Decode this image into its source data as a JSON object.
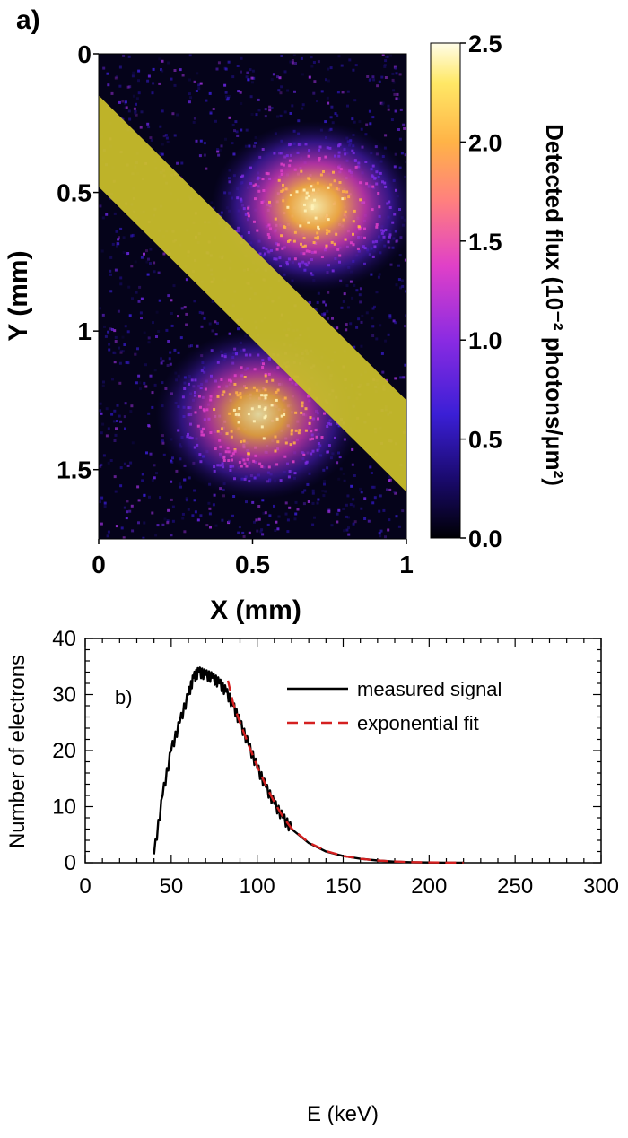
{
  "chart_data": [
    {
      "panel_label": "a)",
      "type": "heatmap",
      "xlabel": "X (mm)",
      "ylabel": "Y (mm)",
      "xlim": [
        0,
        1
      ],
      "ylim": [
        1.75,
        0
      ],
      "x_ticks": [
        0,
        0.5,
        1
      ],
      "x_tick_labels": [
        "0",
        "0.5",
        "1"
      ],
      "y_ticks": [
        0,
        0.5,
        1,
        1.5
      ],
      "y_tick_labels": [
        "0",
        "0.5",
        "1",
        "1.5"
      ],
      "colorbar": {
        "label": "Detected flux (10⁻² photons/μm²)",
        "range": [
          0,
          2.5
        ],
        "ticks": [
          0,
          0.5,
          1.0,
          1.5,
          2.0,
          2.5
        ],
        "tick_labels": [
          "0.0",
          "0.5",
          "1.0",
          "1.5",
          "2.0",
          "2.5"
        ],
        "colormap": [
          "#000004",
          "#1a0a6e",
          "#3b1fd6",
          "#8a2be2",
          "#e040c8",
          "#ff7f7f",
          "#ffb347",
          "#ffe866",
          "#fffde8"
        ]
      },
      "hotspots": [
        {
          "x": 0.7,
          "y": 0.55,
          "peak": 2.4
        },
        {
          "x": 0.52,
          "y": 1.3,
          "peak": 2.2
        }
      ],
      "overlay_band": {
        "color": "#c8bd2a",
        "upper_edge": [
          [
            0,
            0.15
          ],
          [
            1,
            1.25
          ]
        ],
        "lower_edge": [
          [
            0,
            0.48
          ],
          [
            1,
            1.58
          ]
        ]
      }
    },
    {
      "panel_label": "b)",
      "type": "line",
      "xlabel": "E (keV)",
      "ylabel": "Number of electrons",
      "xlim": [
        0,
        300
      ],
      "ylim": [
        0,
        40
      ],
      "x_ticks": [
        0,
        50,
        100,
        150,
        200,
        250,
        300
      ],
      "y_ticks": [
        0,
        10,
        20,
        30,
        40
      ],
      "legend_position": "top-right",
      "series": [
        {
          "name": "measured signal",
          "color": "#000000",
          "style": "solid",
          "x": [
            40,
            45,
            50,
            55,
            60,
            63,
            66,
            70,
            74,
            78,
            82,
            86,
            90,
            95,
            100,
            105,
            110,
            115,
            120,
            130,
            140,
            150,
            160,
            170,
            180,
            190,
            200,
            210,
            220
          ],
          "y": [
            1.5,
            12,
            20,
            25,
            30,
            33,
            34,
            33.5,
            33,
            32,
            30.5,
            28,
            25,
            21,
            17,
            13.5,
            10.5,
            8,
            6,
            3.5,
            2,
            1.2,
            0.7,
            0.4,
            0.2,
            0.1,
            0.05,
            0.02,
            0
          ]
        },
        {
          "name": "exponential fit",
          "color": "#d42020",
          "style": "dashed",
          "x": [
            83,
            86,
            90,
            95,
            100,
            105,
            110,
            115,
            120,
            130,
            140,
            150,
            160,
            170,
            180,
            190,
            200,
            210,
            220
          ],
          "y": [
            32.5,
            28.5,
            25,
            21,
            17.2,
            13.8,
            10.8,
            8.2,
            6.1,
            3.6,
            2.1,
            1.2,
            0.7,
            0.4,
            0.22,
            0.12,
            0.06,
            0.03,
            0.01
          ]
        }
      ]
    }
  ]
}
